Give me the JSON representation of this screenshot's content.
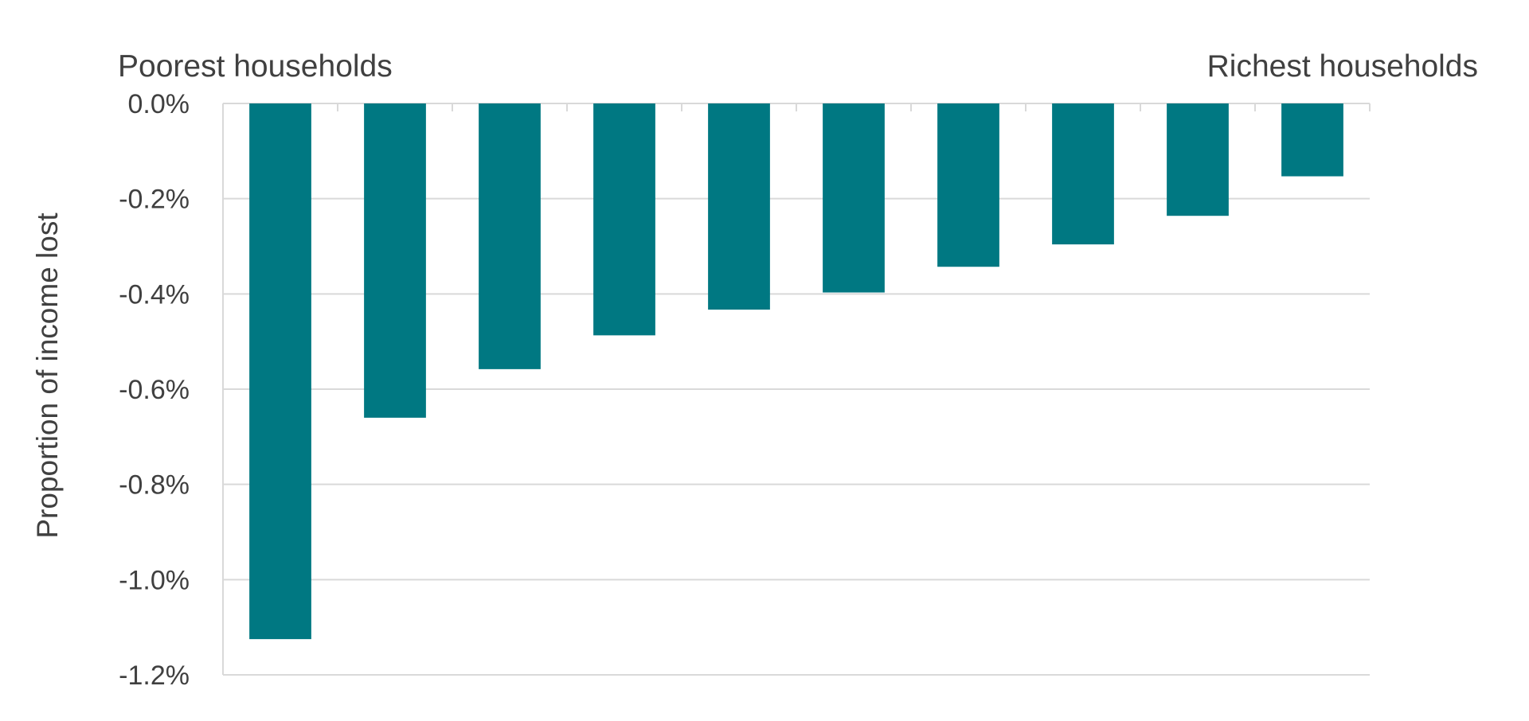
{
  "chart_data": {
    "type": "bar",
    "categories": [
      "",
      "",
      "",
      "",
      "",
      "",
      "",
      "",
      "",
      ""
    ],
    "values": [
      -1.125,
      -0.66,
      -0.558,
      -0.487,
      -0.433,
      -0.397,
      -0.343,
      -0.296,
      -0.236,
      -0.153
    ],
    "title": "",
    "xlabel": "",
    "ylabel": "Proportion of income lost",
    "ylim": [
      -1.2,
      0.0
    ],
    "yticks": [
      0.0,
      -0.2,
      -0.4,
      -0.6,
      -0.8,
      -1.0,
      -1.2
    ],
    "ytick_labels": [
      "0.0%",
      "-0.2%",
      "-0.4%",
      "-0.6%",
      "-0.8%",
      "-1.0%",
      "-1.2%"
    ],
    "grid": true,
    "legend": "none",
    "annotations": {
      "left": "Poorest households",
      "right": "Richest households"
    },
    "colors": {
      "bar": "#007882",
      "grid": "#d9d9d9",
      "text": "#404040"
    }
  }
}
